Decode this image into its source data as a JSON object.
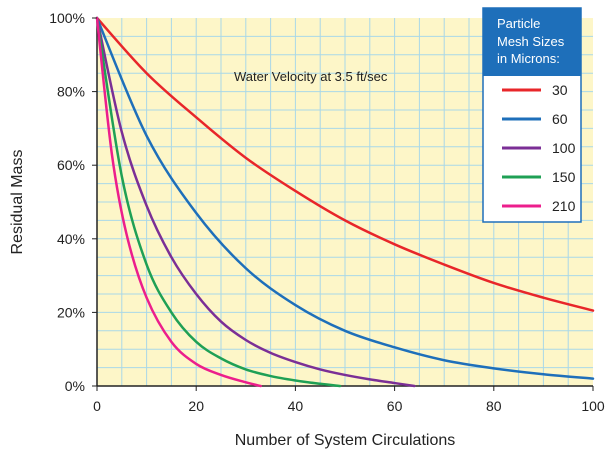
{
  "chart_data": {
    "type": "line",
    "title": "",
    "annotation": "Water Velocity at 3.5 ft/sec",
    "xlabel": "Number of System Circulations",
    "ylabel": "Residual Mass",
    "xlim": [
      0,
      100
    ],
    "ylim": [
      0,
      100
    ],
    "x_ticks": [
      "0",
      "20",
      "40",
      "60",
      "80",
      "100"
    ],
    "y_ticks": [
      "0%",
      "20%",
      "40%",
      "60%",
      "80%",
      "100%"
    ],
    "grid": true,
    "legend": {
      "title_lines": [
        "Particle",
        "Mesh Sizes",
        "in Microns:"
      ],
      "placement": "top-right"
    },
    "series": [
      {
        "name": "30",
        "color": "#e8262a",
        "x": [
          0,
          10,
          20,
          30,
          40,
          50,
          60,
          70,
          80,
          90,
          100
        ],
        "y": [
          100,
          85,
          73,
          62,
          53,
          45,
          38.5,
          33,
          28,
          24,
          20.5
        ]
      },
      {
        "name": "60",
        "color": "#1e6fba",
        "x": [
          0,
          10,
          20,
          30,
          40,
          50,
          60,
          70,
          80,
          90,
          100
        ],
        "y": [
          100,
          68,
          47,
          32,
          22,
          15,
          10.5,
          7,
          4.8,
          3.2,
          2
        ]
      },
      {
        "name": "100",
        "color": "#7b2f96",
        "x": [
          0,
          5,
          10,
          15,
          20,
          25,
          30,
          35,
          40,
          45,
          50,
          55,
          60,
          64
        ],
        "y": [
          100,
          69,
          49,
          35,
          25,
          17.5,
          12.5,
          9,
          6.5,
          4.5,
          3,
          1.8,
          0.8,
          0
        ]
      },
      {
        "name": "150",
        "color": "#1fa055",
        "x": [
          0,
          5,
          10,
          15,
          20,
          25,
          30,
          35,
          40,
          45,
          49
        ],
        "y": [
          100,
          57,
          33,
          20,
          12,
          7.5,
          4.5,
          2.7,
          1.5,
          0.6,
          0
        ]
      },
      {
        "name": "210",
        "color": "#ec1e8c",
        "x": [
          0,
          3,
          6,
          10,
          15,
          20,
          25,
          30,
          33
        ],
        "y": [
          100,
          63,
          41,
          24,
          12,
          6,
          3,
          1,
          0
        ]
      }
    ],
    "colors": {
      "plot_background": "#fdf6c8",
      "gridline": "#a9d8e8",
      "legend_header": "#1e6fba"
    }
  }
}
